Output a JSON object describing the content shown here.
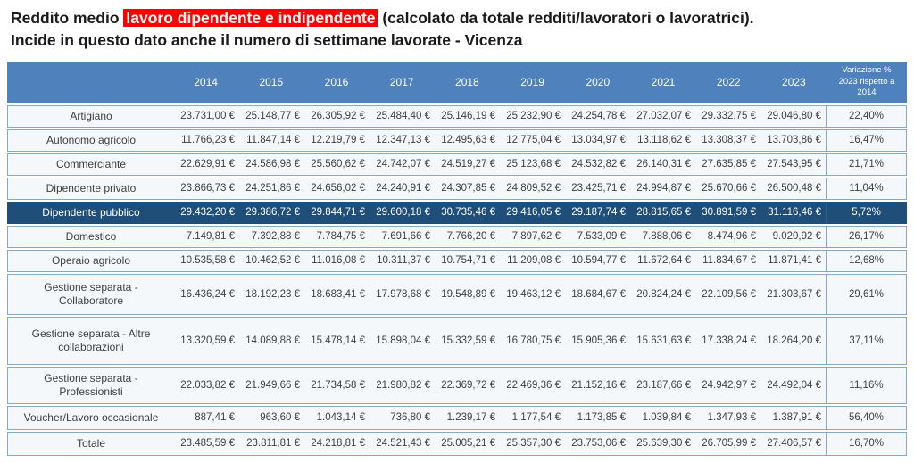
{
  "title": {
    "prefix": "Reddito medio ",
    "highlight": "lavoro dipendente e indipendente",
    "suffix": "  (calcolato da totale redditi/lavoratori o lavoratrici). Incide in questo dato anche il numero di settimane lavorate - Vicenza"
  },
  "colors": {
    "header_bg": "#4f81bd",
    "highlight_row_bg": "#1f4e79",
    "row_bg": "#f5f8fb",
    "border": "#86a8c8",
    "title_highlight_bg": "#ff0000",
    "title_highlight_text": "#ffffff"
  },
  "table": {
    "corner_label": "",
    "years": [
      "2014",
      "2015",
      "2016",
      "2017",
      "2018",
      "2019",
      "2020",
      "2021",
      "2022",
      "2023"
    ],
    "variation_header": "Variazione % 2023 rispetto a 2014",
    "rows": [
      {
        "label": "Artigiano",
        "highlight": false,
        "values": [
          "23.731,00 €",
          "25.148,77 €",
          "26.305,92 €",
          "25.484,40 €",
          "25.146,19 €",
          "25.232,90 €",
          "24.254,78 €",
          "27.032,07 €",
          "29.332,75 €",
          "29.046,80 €"
        ],
        "variation": "22,40%"
      },
      {
        "label": "Autonomo agricolo",
        "highlight": false,
        "values": [
          "11.766,23 €",
          "11.847,14 €",
          "12.219,79 €",
          "12.347,13 €",
          "12.495,63 €",
          "12.775,04 €",
          "13.034,97 €",
          "13.118,62 €",
          "13.308,37 €",
          "13.703,86 €"
        ],
        "variation": "16,47%"
      },
      {
        "label": "Commerciante",
        "highlight": false,
        "values": [
          "22.629,91 €",
          "24.586,98 €",
          "25.560,62 €",
          "24.742,07 €",
          "24.519,27 €",
          "25.123,68 €",
          "24.532,82 €",
          "26.140,31 €",
          "27.635,85 €",
          "27.543,95 €"
        ],
        "variation": "21,71%"
      },
      {
        "label": "Dipendente privato",
        "highlight": false,
        "values": [
          "23.866,73 €",
          "24.251,86 €",
          "24.656,02 €",
          "24.240,91 €",
          "24.307,85 €",
          "24.809,52 €",
          "23.425,71 €",
          "24.994,87 €",
          "25.670,66 €",
          "26.500,48 €"
        ],
        "variation": "11,04%"
      },
      {
        "label": "Dipendente pubblico",
        "highlight": true,
        "values": [
          "29.432,20 €",
          "29.386,72 €",
          "29.844,71 €",
          "29.600,18 €",
          "30.735,46 €",
          "29.416,05 €",
          "29.187,74 €",
          "28.815,65 €",
          "30.891,59 €",
          "31.116,46 €"
        ],
        "variation": "5,72%"
      },
      {
        "label": "Domestico",
        "highlight": false,
        "values": [
          "7.149,81 €",
          "7.392,88 €",
          "7.784,75 €",
          "7.691,66 €",
          "7.766,20 €",
          "7.897,62 €",
          "7.533,09 €",
          "7.888,06 €",
          "8.474,96 €",
          "9.020,92 €"
        ],
        "variation": "26,17%"
      },
      {
        "label": "Operaio agricolo",
        "highlight": false,
        "values": [
          "10.535,58 €",
          "10.462,52 €",
          "11.016,08 €",
          "10.311,37 €",
          "10.754,71 €",
          "11.209,08 €",
          "10.594,77 €",
          "11.672,64 €",
          "11.834,67 €",
          "11.871,41 €"
        ],
        "variation": "12,68%"
      },
      {
        "label": "Gestione separata  - Collaboratore",
        "highlight": false,
        "values": [
          "16.436,24 €",
          "18.192,23 €",
          "18.683,41 €",
          "17.978,68 €",
          "19.548,89 €",
          "19.463,12 €",
          "18.684,67 €",
          "20.824,24 €",
          "22.109,56 €",
          "21.303,67 €"
        ],
        "variation": "29,61%"
      },
      {
        "label": "Gestione separata  - Altre collaborazioni",
        "highlight": false,
        "values": [
          "13.320,59 €",
          "14.089,88 €",
          "15.478,14 €",
          "15.898,04 €",
          "15.332,59 €",
          "16.780,75 €",
          "15.905,36 €",
          "15.631,63 €",
          "17.338,24 €",
          "18.264,20 €"
        ],
        "variation": "37,11%"
      },
      {
        "label": "Gestione separata  - Professionisti",
        "highlight": false,
        "values": [
          "22.033,82 €",
          "21.949,66 €",
          "21.734,58 €",
          "21.980,82 €",
          "22.369,72 €",
          "22.469,36 €",
          "21.152,16 €",
          "23.187,66 €",
          "24.942,97 €",
          "24.492,04 €"
        ],
        "variation": "11,16%"
      },
      {
        "label": "Voucher/Lavoro occasionale",
        "highlight": false,
        "values": [
          "887,41 €",
          "963,60 €",
          "1.043,14 €",
          "736,80 €",
          "1.239,17 €",
          "1.177,54 €",
          "1.173,85 €",
          "1.039,84 €",
          "1.347,93 €",
          "1.387,91 €"
        ],
        "variation": "56,40%"
      },
      {
        "label": "Totale",
        "highlight": false,
        "values": [
          "23.485,59 €",
          "23.811,81 €",
          "24.218,81 €",
          "24.521,43 €",
          "25.005,21 €",
          "25.357,30 €",
          "23.753,06 €",
          "25.639,30 €",
          "26.705,99 €",
          "27.406,57 €"
        ],
        "variation": "16,70%"
      }
    ]
  }
}
